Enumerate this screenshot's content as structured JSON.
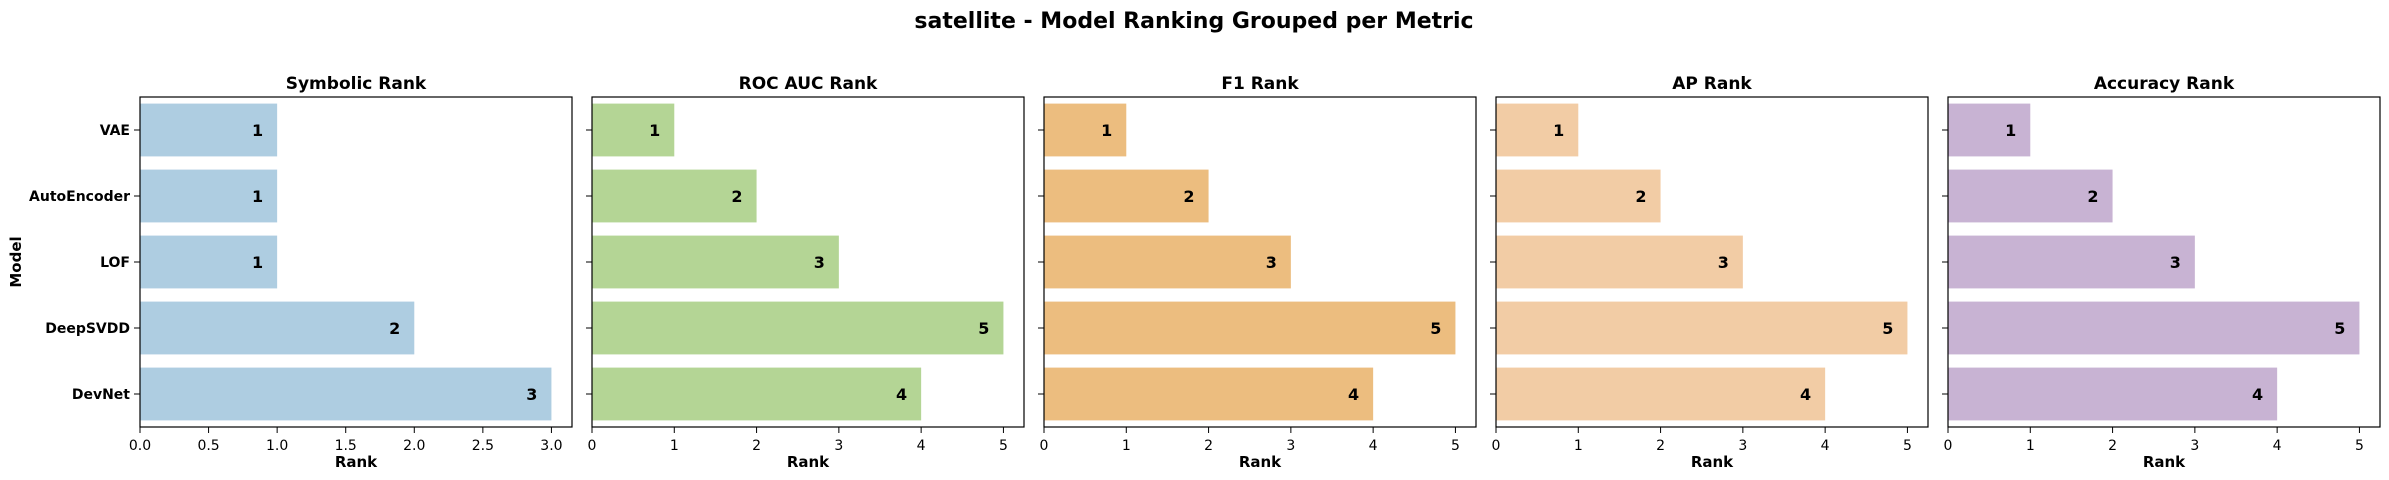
{
  "suptitle": "satellite - Model Ranking Grouped per Metric",
  "models": [
    "VAE",
    "AutoEncoder",
    "LOF",
    "DeepSVDD",
    "DevNet"
  ],
  "ylabel": "Model",
  "chart_data": [
    {
      "type": "bar",
      "orientation": "horizontal",
      "title": "Symbolic Rank",
      "xlabel": "Rank",
      "color": "#aecde1",
      "categories": [
        "VAE",
        "AutoEncoder",
        "LOF",
        "DeepSVDD",
        "DevNet"
      ],
      "values": [
        1,
        1,
        1,
        2,
        3
      ],
      "xlim": [
        0,
        3.15
      ],
      "xticks": [
        0,
        0.5,
        1,
        1.5,
        2,
        2.5,
        3
      ],
      "xtick_labels": [
        "0.0",
        "0.5",
        "1.0",
        "1.5",
        "2.0",
        "2.5",
        "3.0"
      ]
    },
    {
      "type": "bar",
      "orientation": "horizontal",
      "title": "ROC AUC Rank",
      "xlabel": "Rank",
      "color": "#b4d595",
      "categories": [
        "VAE",
        "AutoEncoder",
        "LOF",
        "DeepSVDD",
        "DevNet"
      ],
      "values": [
        1,
        2,
        3,
        5,
        4
      ],
      "xlim": [
        0,
        5.25
      ],
      "xticks": [
        0,
        1,
        2,
        3,
        4,
        5
      ],
      "xtick_labels": [
        "0",
        "1",
        "2",
        "3",
        "4",
        "5"
      ]
    },
    {
      "type": "bar",
      "orientation": "horizontal",
      "title": "F1 Rank",
      "xlabel": "Rank",
      "color": "#ecbd7f",
      "categories": [
        "VAE",
        "AutoEncoder",
        "LOF",
        "DeepSVDD",
        "DevNet"
      ],
      "values": [
        1,
        2,
        3,
        5,
        4
      ],
      "xlim": [
        0,
        5.25
      ],
      "xticks": [
        0,
        1,
        2,
        3,
        4,
        5
      ],
      "xtick_labels": [
        "0",
        "1",
        "2",
        "3",
        "4",
        "5"
      ]
    },
    {
      "type": "bar",
      "orientation": "horizontal",
      "title": "AP Rank",
      "xlabel": "Rank",
      "color": "#f2cca5",
      "categories": [
        "VAE",
        "AutoEncoder",
        "LOF",
        "DeepSVDD",
        "DevNet"
      ],
      "values": [
        1,
        2,
        3,
        5,
        4
      ],
      "xlim": [
        0,
        5.25
      ],
      "xticks": [
        0,
        1,
        2,
        3,
        4,
        5
      ],
      "xtick_labels": [
        "0",
        "1",
        "2",
        "3",
        "4",
        "5"
      ]
    },
    {
      "type": "bar",
      "orientation": "horizontal",
      "title": "Accuracy Rank",
      "xlabel": "Rank",
      "color": "#c8b3d3",
      "categories": [
        "VAE",
        "AutoEncoder",
        "LOF",
        "DeepSVDD",
        "DevNet"
      ],
      "values": [
        1,
        2,
        3,
        5,
        4
      ],
      "xlim": [
        0,
        5.25
      ],
      "xticks": [
        0,
        1,
        2,
        3,
        4,
        5
      ],
      "xtick_labels": [
        "0",
        "1",
        "2",
        "3",
        "4",
        "5"
      ]
    }
  ]
}
